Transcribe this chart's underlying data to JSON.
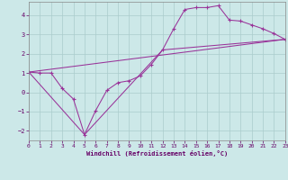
{
  "xlabel": "Windchill (Refroidissement éolien,°C)",
  "background_color": "#cce8e8",
  "grid_color": "#aacccc",
  "line_color": "#993399",
  "xlim": [
    0,
    23
  ],
  "ylim": [
    -2.5,
    4.7
  ],
  "xticks": [
    0,
    1,
    2,
    3,
    4,
    5,
    6,
    7,
    8,
    9,
    10,
    11,
    12,
    13,
    14,
    15,
    16,
    17,
    18,
    19,
    20,
    21,
    22,
    23
  ],
  "yticks": [
    -2,
    -1,
    0,
    1,
    2,
    3,
    4
  ],
  "series": [
    [
      0,
      1.05
    ],
    [
      1,
      1.0
    ],
    [
      2,
      1.0
    ],
    [
      3,
      0.2
    ],
    [
      4,
      -0.35
    ],
    [
      5,
      -2.2
    ],
    [
      6,
      -0.95
    ],
    [
      7,
      0.1
    ],
    [
      8,
      0.5
    ],
    [
      9,
      0.6
    ],
    [
      10,
      0.85
    ],
    [
      11,
      1.45
    ],
    [
      12,
      2.2
    ],
    [
      13,
      3.3
    ],
    [
      14,
      4.3
    ],
    [
      15,
      4.4
    ],
    [
      16,
      4.4
    ],
    [
      17,
      4.5
    ],
    [
      18,
      3.75
    ],
    [
      19,
      3.7
    ],
    [
      20,
      3.5
    ],
    [
      21,
      3.3
    ],
    [
      22,
      3.05
    ],
    [
      23,
      2.75
    ]
  ],
  "series2": [
    [
      0,
      1.05
    ],
    [
      23,
      2.75
    ]
  ],
  "series3": [
    [
      0,
      1.05
    ],
    [
      5,
      -2.2
    ],
    [
      12,
      2.2
    ],
    [
      23,
      2.75
    ]
  ]
}
